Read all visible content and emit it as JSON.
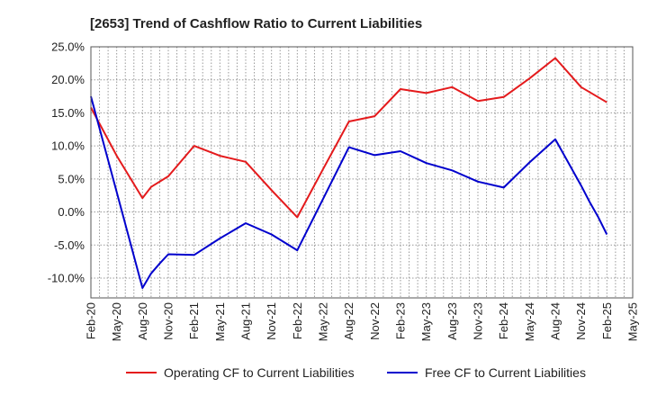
{
  "chart_data": {
    "type": "line",
    "title": "[2653]  Trend of Cashflow Ratio to Current Liabilities",
    "xlabel": "",
    "ylabel": "",
    "x_ticks": [
      "Feb-20",
      "May-20",
      "Aug-20",
      "Nov-20",
      "Feb-21",
      "May-21",
      "Aug-21",
      "Nov-21",
      "Feb-22",
      "May-22",
      "Aug-22",
      "Nov-22",
      "Feb-23",
      "May-23",
      "Aug-23",
      "Nov-23",
      "Feb-24",
      "May-24",
      "Aug-24",
      "Nov-24",
      "Feb-25",
      "May-25"
    ],
    "y_ticks": [
      "25.0%",
      "20.0%",
      "15.0%",
      "10.0%",
      "5.0%",
      "0.0%",
      "-5.0%",
      "-10.0%"
    ],
    "y_tick_values": [
      25,
      20,
      15,
      10,
      5,
      0,
      -5,
      -10
    ],
    "ylim": [
      -13,
      25
    ],
    "x_range": [
      "Feb-20",
      "May-25"
    ],
    "grid": true,
    "legend_position": "bottom",
    "series": [
      {
        "name": "Operating CF to Current Liabilities",
        "color": "#e41a1c",
        "points": [
          [
            "Feb-20",
            15.8
          ],
          [
            "May-20",
            8.5
          ],
          [
            "Aug-20",
            2.1
          ],
          [
            "Sep-20",
            3.8
          ],
          [
            "Nov-20",
            5.4
          ],
          [
            "Feb-21",
            10.0
          ],
          [
            "May-21",
            8.5
          ],
          [
            "Aug-21",
            7.6
          ],
          [
            "Nov-21",
            3.3
          ],
          [
            "Feb-22",
            -0.8
          ],
          [
            "May-22",
            6.5
          ],
          [
            "Aug-22",
            13.7
          ],
          [
            "Nov-22",
            14.5
          ],
          [
            "Feb-23",
            18.6
          ],
          [
            "May-23",
            18.0
          ],
          [
            "Aug-23",
            18.9
          ],
          [
            "Nov-23",
            16.8
          ],
          [
            "Feb-24",
            17.4
          ],
          [
            "May-24",
            20.2
          ],
          [
            "Aug-24",
            23.3
          ],
          [
            "Nov-24",
            18.9
          ],
          [
            "Feb-25",
            16.6
          ]
        ]
      },
      {
        "name": "Free CF to Current Liabilities",
        "color": "#0000cd",
        "points": [
          [
            "Feb-20",
            17.5
          ],
          [
            "May-20",
            3.0
          ],
          [
            "Aug-20",
            -11.5
          ],
          [
            "Sep-20",
            -9.3
          ],
          [
            "Oct-20",
            -7.8
          ],
          [
            "Nov-20",
            -6.4
          ],
          [
            "Feb-21",
            -6.5
          ],
          [
            "May-21",
            -4.0
          ],
          [
            "Aug-21",
            -1.7
          ],
          [
            "Nov-21",
            -3.4
          ],
          [
            "Feb-22",
            -5.8
          ],
          [
            "May-22",
            2.0
          ],
          [
            "Aug-22",
            9.8
          ],
          [
            "Nov-22",
            8.6
          ],
          [
            "Feb-23",
            9.2
          ],
          [
            "May-23",
            7.4
          ],
          [
            "Aug-23",
            6.3
          ],
          [
            "Nov-23",
            4.6
          ],
          [
            "Feb-24",
            3.7
          ],
          [
            "May-24",
            7.5
          ],
          [
            "Aug-24",
            11.0
          ],
          [
            "Nov-24",
            4.0
          ],
          [
            "Dec-24",
            1.5
          ],
          [
            "Jan-25",
            -0.8
          ],
          [
            "Feb-25",
            -3.4
          ]
        ]
      }
    ]
  }
}
